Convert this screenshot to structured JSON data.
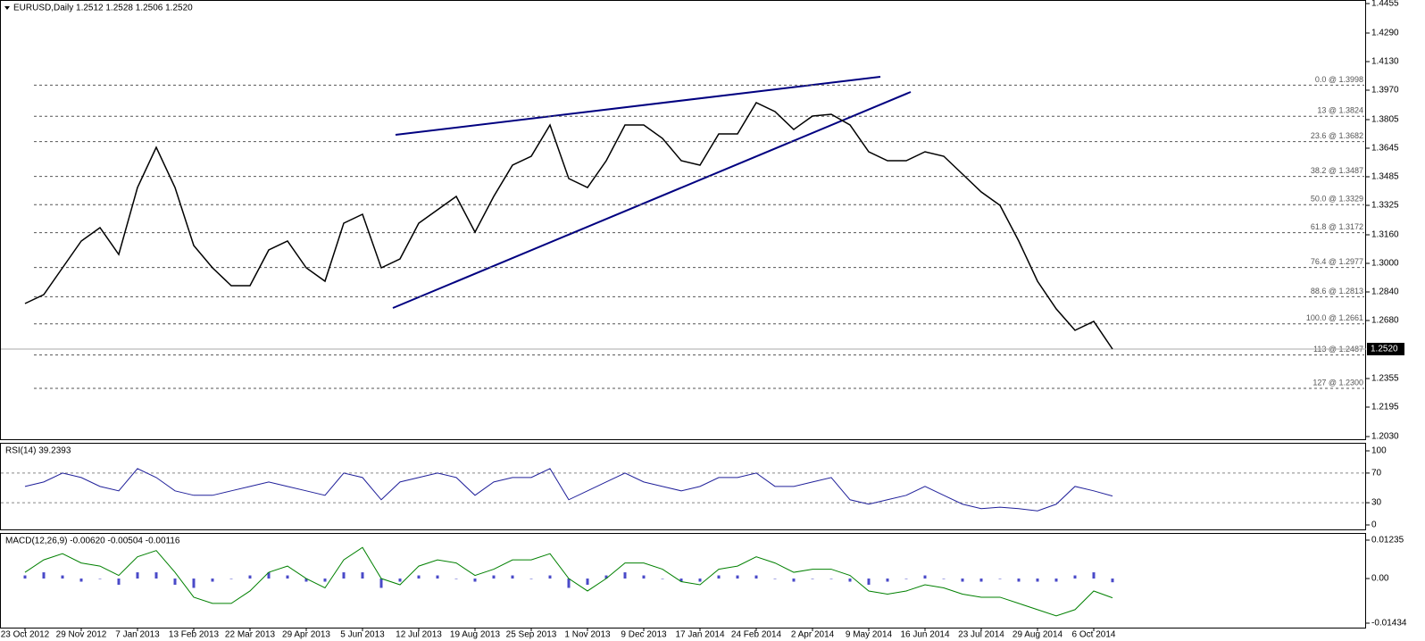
{
  "chart_data": [
    {
      "type": "line",
      "title": "EURUSD,Daily  1.2512 1.2528 1.2506 1.2520",
      "categories": [
        "23 Oct 2012",
        null,
        null,
        "29 Nov 2012",
        null,
        null,
        "7 Jan 2013",
        null,
        null,
        "13 Feb 2013",
        null,
        null,
        "22 Mar 2013",
        null,
        null,
        "29 Apr 2013",
        null,
        null,
        "5 Jun 2013",
        null,
        null,
        "12 Jul 2013",
        null,
        null,
        "19 Aug 2013",
        null,
        null,
        "25 Sep 2013",
        null,
        null,
        "1 Nov 2013",
        null,
        null,
        "9 Dec 2013",
        null,
        null,
        "17 Jan 2014",
        null,
        null,
        "24 Feb 2014",
        null,
        null,
        "2 Apr 2014",
        null,
        null,
        "9 May 2014",
        null,
        null,
        "16 Jun 2014",
        null,
        null,
        "23 Jul 2014",
        null,
        null,
        "29 Aug 2014",
        null,
        null,
        "6 Oct 2014",
        null
      ],
      "series": [
        {
          "color": "#000000",
          "values": [
            1.2775,
            1.2825,
            1.2975,
            1.3125,
            1.32,
            1.305,
            1.3425,
            1.365,
            1.3425,
            1.31,
            1.2975,
            1.2875,
            1.2875,
            1.3075,
            1.3125,
            1.2975,
            1.29,
            1.3225,
            1.3275,
            1.2975,
            1.3025,
            1.3225,
            1.33,
            1.3375,
            1.3175,
            1.3375,
            1.355,
            1.36,
            1.3775,
            1.3475,
            1.3425,
            1.3575,
            1.3775,
            1.3775,
            1.37,
            1.3575,
            1.355,
            1.3725,
            1.3725,
            1.39,
            1.385,
            1.375,
            1.3825,
            1.3835,
            1.3775,
            1.3625,
            1.3575,
            1.3575,
            1.3625,
            1.36,
            1.35,
            1.34,
            1.3325,
            1.3125,
            1.29,
            1.2745,
            1.2625,
            1.2675,
            1.252
          ]
        }
      ],
      "ylim": [
        1.203,
        1.4455
      ],
      "yticks": [
        {
          "value": 1.4455,
          "label": "1.4455"
        },
        {
          "value": 1.429,
          "label": "1.4290"
        },
        {
          "value": 1.413,
          "label": "1.4130"
        },
        {
          "value": 1.397,
          "label": "1.3970"
        },
        {
          "value": 1.3805,
          "label": "1.3805"
        },
        {
          "value": 1.3645,
          "label": "1.3645"
        },
        {
          "value": 1.3485,
          "label": "1.3485"
        },
        {
          "value": 1.3325,
          "label": "1.3325"
        },
        {
          "value": 1.316,
          "label": "1.3160"
        },
        {
          "value": 1.3,
          "label": "1.3000"
        },
        {
          "value": 1.284,
          "label": "1.2840"
        },
        {
          "value": 1.268,
          "label": "1.2680"
        },
        {
          "value": 1.2355,
          "label": "1.2355"
        },
        {
          "value": 1.2195,
          "label": "1.2195"
        },
        {
          "value": 1.203,
          "label": "1.2030"
        }
      ],
      "annotations": [
        {
          "value": 1.3998,
          "label": "0.0 @ 1.3998"
        },
        {
          "value": 1.3824,
          "label": "13 @ 1.3824"
        },
        {
          "value": 1.3682,
          "label": "23.6 @ 1.3682"
        },
        {
          "value": 1.3487,
          "label": "38.2 @ 1.3487"
        },
        {
          "value": 1.3329,
          "label": "50.0 @ 1.3329"
        },
        {
          "value": 1.3172,
          "label": "61.8 @ 1.3172"
        },
        {
          "value": 1.2977,
          "label": "76.4 @ 1.2977"
        },
        {
          "value": 1.2813,
          "label": "88.6 @ 1.2813"
        },
        {
          "value": 1.2661,
          "label": "100.0 @ 1.2661"
        },
        {
          "value": 1.2487,
          "label": "113 @ 1.2487"
        },
        {
          "value": 1.23,
          "label": "127 @ 1.2300"
        }
      ],
      "current": {
        "value": 1.252,
        "label": "1.2520"
      }
    },
    {
      "type": "line",
      "title": "RSI(14) 39.2393",
      "series": [
        {
          "color": "#20209a",
          "values": [
            52,
            58,
            70,
            64,
            52,
            46,
            76,
            64,
            46,
            40,
            40,
            46,
            52,
            58,
            52,
            46,
            40,
            70,
            64,
            34,
            58,
            64,
            70,
            64,
            40,
            58,
            64,
            64,
            76,
            34,
            46,
            58,
            70,
            58,
            52,
            46,
            52,
            64,
            64,
            70,
            52,
            52,
            58,
            64,
            34,
            28,
            34,
            40,
            52,
            40,
            28,
            22,
            24,
            22,
            19,
            28,
            52,
            46,
            39
          ]
        }
      ],
      "ylim": [
        0,
        100
      ],
      "yticks": [
        100,
        70,
        30,
        0
      ],
      "levels": [
        70,
        30
      ]
    },
    {
      "type": "line",
      "title": "MACD(12,26,9) -0.00620 -0.00504 -0.00116",
      "series": [
        {
          "type": "bar",
          "color": "#4a4ac8",
          "values": [
            0.001,
            0.002,
            0.001,
            -0.001,
            0,
            -0.002,
            0.002,
            0.002,
            -0.002,
            -0.003,
            -0.001,
            0,
            0.001,
            0.002,
            0.001,
            -0.001,
            -0.001,
            0.002,
            0.002,
            -0.003,
            -0.001,
            0.001,
            0.001,
            0,
            -0.001,
            0.001,
            0.001,
            0,
            0.001,
            -0.003,
            -0.002,
            0.001,
            0.002,
            0.001,
            0,
            -0.001,
            -0.001,
            0.001,
            0.001,
            0.001,
            0,
            -0.001,
            0,
            0,
            -0.001,
            -0.002,
            -0.001,
            0,
            0.001,
            0,
            -0.001,
            -0.001,
            0,
            -0.001,
            -0.001,
            -0.001,
            0.001,
            0.002,
            -0.0012
          ]
        },
        {
          "color": "#008000",
          "values": [
            0.002,
            0.006,
            0.008,
            0.005,
            0.004,
            0.001,
            0.007,
            0.009,
            0.002,
            -0.006,
            -0.008,
            -0.008,
            -0.004,
            0.002,
            0.004,
            0,
            -0.003,
            0.006,
            0.01,
            0,
            -0.002,
            0.004,
            0.006,
            0.005,
            0.001,
            0.003,
            0.006,
            0.006,
            0.008,
            0,
            -0.004,
            0,
            0.005,
            0.005,
            0.003,
            -0.001,
            -0.002,
            0.003,
            0.004,
            0.007,
            0.005,
            0.002,
            0.003,
            0.003,
            0.001,
            -0.004,
            -0.005,
            -0.004,
            -0.002,
            -0.003,
            -0.005,
            -0.006,
            -0.006,
            -0.008,
            -0.01,
            -0.012,
            -0.01,
            -0.004,
            -0.0062
          ]
        }
      ],
      "ylim": [
        -0.01434,
        0.01235
      ],
      "yticks": [
        0.01235,
        {
          "value": 0,
          "label": "0.00"
        },
        -0.01434
      ]
    }
  ]
}
